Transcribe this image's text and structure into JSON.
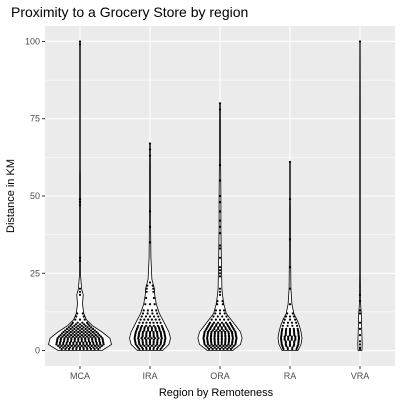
{
  "chart_data": {
    "type": "violin",
    "title": "Proximity to a Grocery Store by region",
    "xlabel": "Region by Remoteness",
    "ylabel": "Distance in KM",
    "ylim": [
      -5,
      105
    ],
    "yticks": [
      0,
      25,
      50,
      75,
      100
    ],
    "grid": true,
    "legend": "none",
    "colors": {
      "panel": "#ebebeb",
      "grid": "#ffffff",
      "outline": "#000000",
      "fill": "#ffffff",
      "points": "#000000"
    },
    "categories": [
      "MCA",
      "IRA",
      "ORA",
      "RA",
      "VRA"
    ],
    "series": [
      {
        "category": "MCA",
        "min": 0,
        "max": 100,
        "density": [
          [
            0,
            0.7
          ],
          [
            2,
            1.0
          ],
          [
            4,
            0.95
          ],
          [
            6,
            0.7
          ],
          [
            8,
            0.4
          ],
          [
            10,
            0.2
          ],
          [
            12,
            0.12
          ],
          [
            15,
            0.08
          ],
          [
            18,
            0.1
          ],
          [
            20,
            0.05
          ],
          [
            24,
            0.02
          ],
          [
            30,
            0.02
          ],
          [
            40,
            0.015
          ],
          [
            48,
            0.02
          ],
          [
            60,
            0.01
          ],
          [
            100,
            0.01
          ]
        ],
        "points": [
          0.5,
          1,
          1.5,
          2,
          2.5,
          3,
          3.5,
          4,
          4.5,
          5,
          5.5,
          6,
          6.5,
          7,
          7.5,
          8,
          8.5,
          9,
          10,
          11,
          12,
          18,
          19,
          20,
          29,
          30,
          47,
          48,
          49,
          99,
          100
        ]
      },
      {
        "category": "IRA",
        "min": 0,
        "max": 67,
        "density": [
          [
            0,
            0.4
          ],
          [
            2,
            0.6
          ],
          [
            4,
            0.65
          ],
          [
            6,
            0.6
          ],
          [
            8,
            0.5
          ],
          [
            10,
            0.4
          ],
          [
            12,
            0.3
          ],
          [
            15,
            0.2
          ],
          [
            18,
            0.15
          ],
          [
            20,
            0.14
          ],
          [
            23,
            0.06
          ],
          [
            30,
            0.03
          ],
          [
            40,
            0.02
          ],
          [
            50,
            0.015
          ],
          [
            67,
            0.01
          ]
        ],
        "points": [
          0.5,
          1,
          1.5,
          2,
          2.5,
          3,
          3.5,
          4,
          4.5,
          5,
          5.5,
          6,
          6.5,
          7,
          7.5,
          8,
          9,
          10,
          11,
          12,
          13,
          15,
          17,
          19,
          20,
          21,
          22,
          35,
          40,
          45,
          63,
          65,
          67
        ]
      },
      {
        "category": "ORA",
        "min": 0,
        "max": 80,
        "density": [
          [
            0,
            0.4
          ],
          [
            2,
            0.65
          ],
          [
            4,
            0.7
          ],
          [
            6,
            0.65
          ],
          [
            8,
            0.5
          ],
          [
            10,
            0.35
          ],
          [
            12,
            0.2
          ],
          [
            15,
            0.12
          ],
          [
            18,
            0.08
          ],
          [
            20,
            0.06
          ],
          [
            25,
            0.05
          ],
          [
            30,
            0.04
          ],
          [
            40,
            0.03
          ],
          [
            50,
            0.03
          ],
          [
            60,
            0.02
          ],
          [
            80,
            0.01
          ]
        ],
        "points": [
          0.5,
          1,
          1.5,
          2,
          2.5,
          3,
          3.5,
          4,
          4.5,
          5,
          5.5,
          6,
          6.5,
          7,
          7.5,
          8,
          8.5,
          9,
          10,
          11,
          12,
          13,
          15,
          16,
          18,
          19,
          20,
          24,
          25,
          26,
          27,
          30,
          33,
          34,
          38,
          40,
          42,
          45,
          48,
          50,
          55,
          60,
          78,
          80
        ]
      },
      {
        "category": "RA",
        "min": 0,
        "max": 61,
        "density": [
          [
            0,
            0.25
          ],
          [
            2,
            0.35
          ],
          [
            4,
            0.38
          ],
          [
            6,
            0.35
          ],
          [
            8,
            0.3
          ],
          [
            10,
            0.22
          ],
          [
            12,
            0.12
          ],
          [
            15,
            0.06
          ],
          [
            20,
            0.03
          ],
          [
            30,
            0.02
          ],
          [
            40,
            0.015
          ],
          [
            50,
            0.01
          ],
          [
            61,
            0.008
          ]
        ],
        "points": [
          0.5,
          1,
          1.5,
          2,
          2.5,
          3,
          3.5,
          4,
          4.5,
          5,
          5.5,
          6,
          6.5,
          7,
          8,
          9,
          10,
          11,
          12,
          15,
          20,
          27,
          36,
          49,
          61
        ]
      },
      {
        "category": "VRA",
        "min": 0,
        "max": 100,
        "density": [
          [
            0,
            0.06
          ],
          [
            2,
            0.07
          ],
          [
            5,
            0.06
          ],
          [
            8,
            0.05
          ],
          [
            12,
            0.04
          ],
          [
            15,
            0.02
          ],
          [
            18,
            0.015
          ],
          [
            25,
            0.01
          ],
          [
            50,
            0.008
          ],
          [
            75,
            0.008
          ],
          [
            100,
            0.006
          ]
        ],
        "points": [
          0.5,
          1,
          2,
          3,
          5,
          7,
          9,
          12,
          13,
          16,
          18,
          100
        ]
      }
    ]
  }
}
